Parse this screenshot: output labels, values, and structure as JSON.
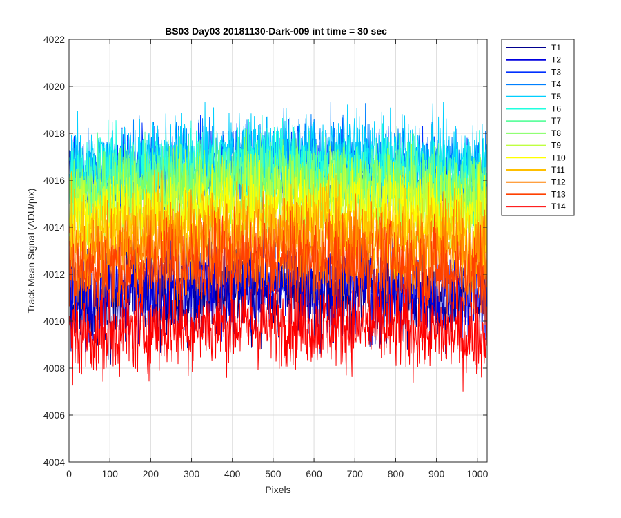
{
  "chart_data": {
    "type": "line",
    "title": "BS03 Day03 20181130-Dark-009 int time = 30 sec",
    "xlabel": "Pixels",
    "ylabel": "Track Mean Signal (ADU/pix)",
    "xlim": [
      0,
      1024
    ],
    "ylim": [
      4004,
      4022
    ],
    "x_ticks": [
      0,
      100,
      200,
      300,
      400,
      500,
      600,
      700,
      800,
      900,
      1000
    ],
    "y_ticks": [
      4004,
      4006,
      4008,
      4010,
      4012,
      4014,
      4016,
      4018,
      4020,
      4022
    ],
    "grid": true,
    "legend_position": "outside-top-right",
    "num_points": 1024,
    "series": [
      {
        "name": "T1",
        "color": "#00008F",
        "mean": 4011.0,
        "noise": 1.3
      },
      {
        "name": "T2",
        "color": "#0000DF",
        "mean": 4011.4,
        "noise": 1.3
      },
      {
        "name": "T3",
        "color": "#0030FF",
        "mean": 4016.2,
        "noise": 1.2
      },
      {
        "name": "T4",
        "color": "#0080FF",
        "mean": 4016.6,
        "noise": 1.2
      },
      {
        "name": "T5",
        "color": "#00CFFF",
        "mean": 4016.8,
        "noise": 1.2
      },
      {
        "name": "T6",
        "color": "#20FFDF",
        "mean": 4016.3,
        "noise": 1.2
      },
      {
        "name": "T7",
        "color": "#60FF9F",
        "mean": 4015.8,
        "noise": 1.2
      },
      {
        "name": "T8",
        "color": "#80FF60",
        "mean": 4015.5,
        "noise": 1.2
      },
      {
        "name": "T9",
        "color": "#BFFF40",
        "mean": 4015.0,
        "noise": 1.2
      },
      {
        "name": "T10",
        "color": "#FFFF00",
        "mean": 4014.5,
        "noise": 1.2
      },
      {
        "name": "T11",
        "color": "#FFBF00",
        "mean": 4013.8,
        "noise": 1.3
      },
      {
        "name": "T12",
        "color": "#FF8000",
        "mean": 4013.0,
        "noise": 1.3
      },
      {
        "name": "T13",
        "color": "#FF4000",
        "mean": 4012.2,
        "noise": 1.3
      },
      {
        "name": "T14",
        "color": "#FF0000",
        "mean": 4009.6,
        "noise": 1.2
      }
    ]
  }
}
